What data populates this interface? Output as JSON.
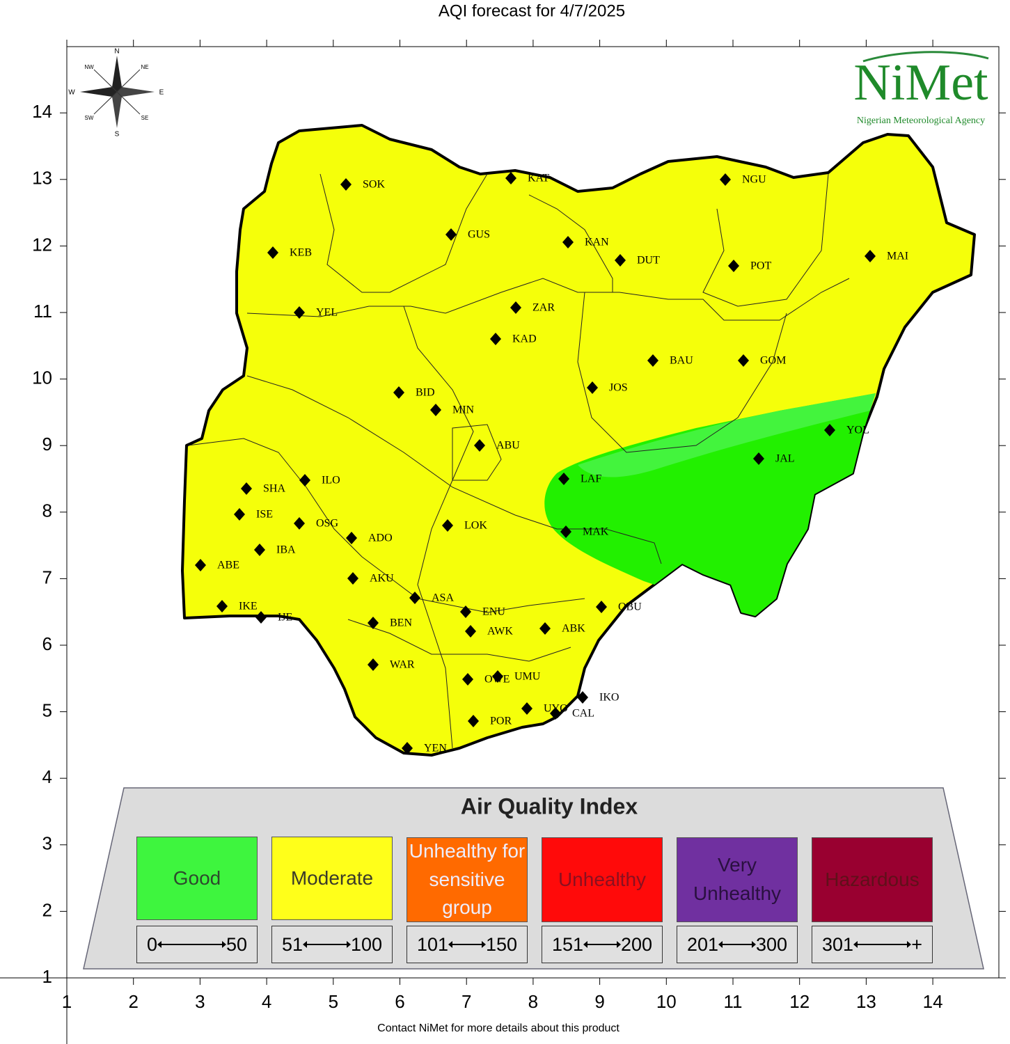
{
  "title": "AQI forecast for 4/7/2025",
  "xticks": [
    1,
    2,
    3,
    4,
    5,
    6,
    7,
    8,
    9,
    10,
    11,
    12,
    13,
    14
  ],
  "yticks": [
    1,
    2,
    3,
    4,
    5,
    6,
    7,
    8,
    9,
    10,
    11,
    12,
    13,
    14
  ],
  "compass": [
    "N",
    "NE",
    "E",
    "SE",
    "S",
    "SW",
    "W",
    "NW"
  ],
  "logo": {
    "name": "NiMet",
    "agency": "Nigerian Meteorological Agency"
  },
  "stations": [
    "SOK",
    "KAT",
    "NGU",
    "GUS",
    "KAN",
    "DUT",
    "KEB",
    "POT",
    "MAI",
    "YEL",
    "ZAR",
    "KAD",
    "BAU",
    "GOM",
    "JOS",
    "BID",
    "MIN",
    "YOL",
    "ABU",
    "JAL",
    "LAF",
    "SHA",
    "ILO",
    "ISE",
    "OSG",
    "MAK",
    "LOK",
    "ADO",
    "IBA",
    "ABE",
    "AKU",
    "ASA",
    "IKE",
    "IJE",
    "ENU",
    "BEN",
    "AWK",
    "ABK",
    "OBU",
    "WAR",
    "OWE",
    "UMU",
    "IKO",
    "UYO",
    "CAL",
    "POR",
    "YEN"
  ],
  "legend": {
    "title": "Air Quality Index",
    "categories": [
      {
        "label": "Good",
        "color": "#3ef53e",
        "text_color": "#2d4a2d",
        "from": 0,
        "to": 50
      },
      {
        "label": "Moderate",
        "color": "#ffff1a",
        "text_color": "#3a3a2a",
        "from": 51,
        "to": 100
      },
      {
        "label": "Unhealthy for sensitive group",
        "color": "#ff6a00",
        "text_color": "#eeeeff",
        "from": 101,
        "to": 150
      },
      {
        "label": "Unhealthy",
        "color": "#ff0a0a",
        "text_color": "#8a1020",
        "from": 151,
        "to": 200
      },
      {
        "label": "Very Unhealthy",
        "color": "#7030a0",
        "text_color": "#2a1040",
        "from": 201,
        "to": 300
      },
      {
        "label": "Hazardous",
        "color": "#990030",
        "text_color": "#60101a",
        "from": 301,
        "to": "+"
      }
    ]
  },
  "footer": "Contact NiMet for more details about this product"
}
